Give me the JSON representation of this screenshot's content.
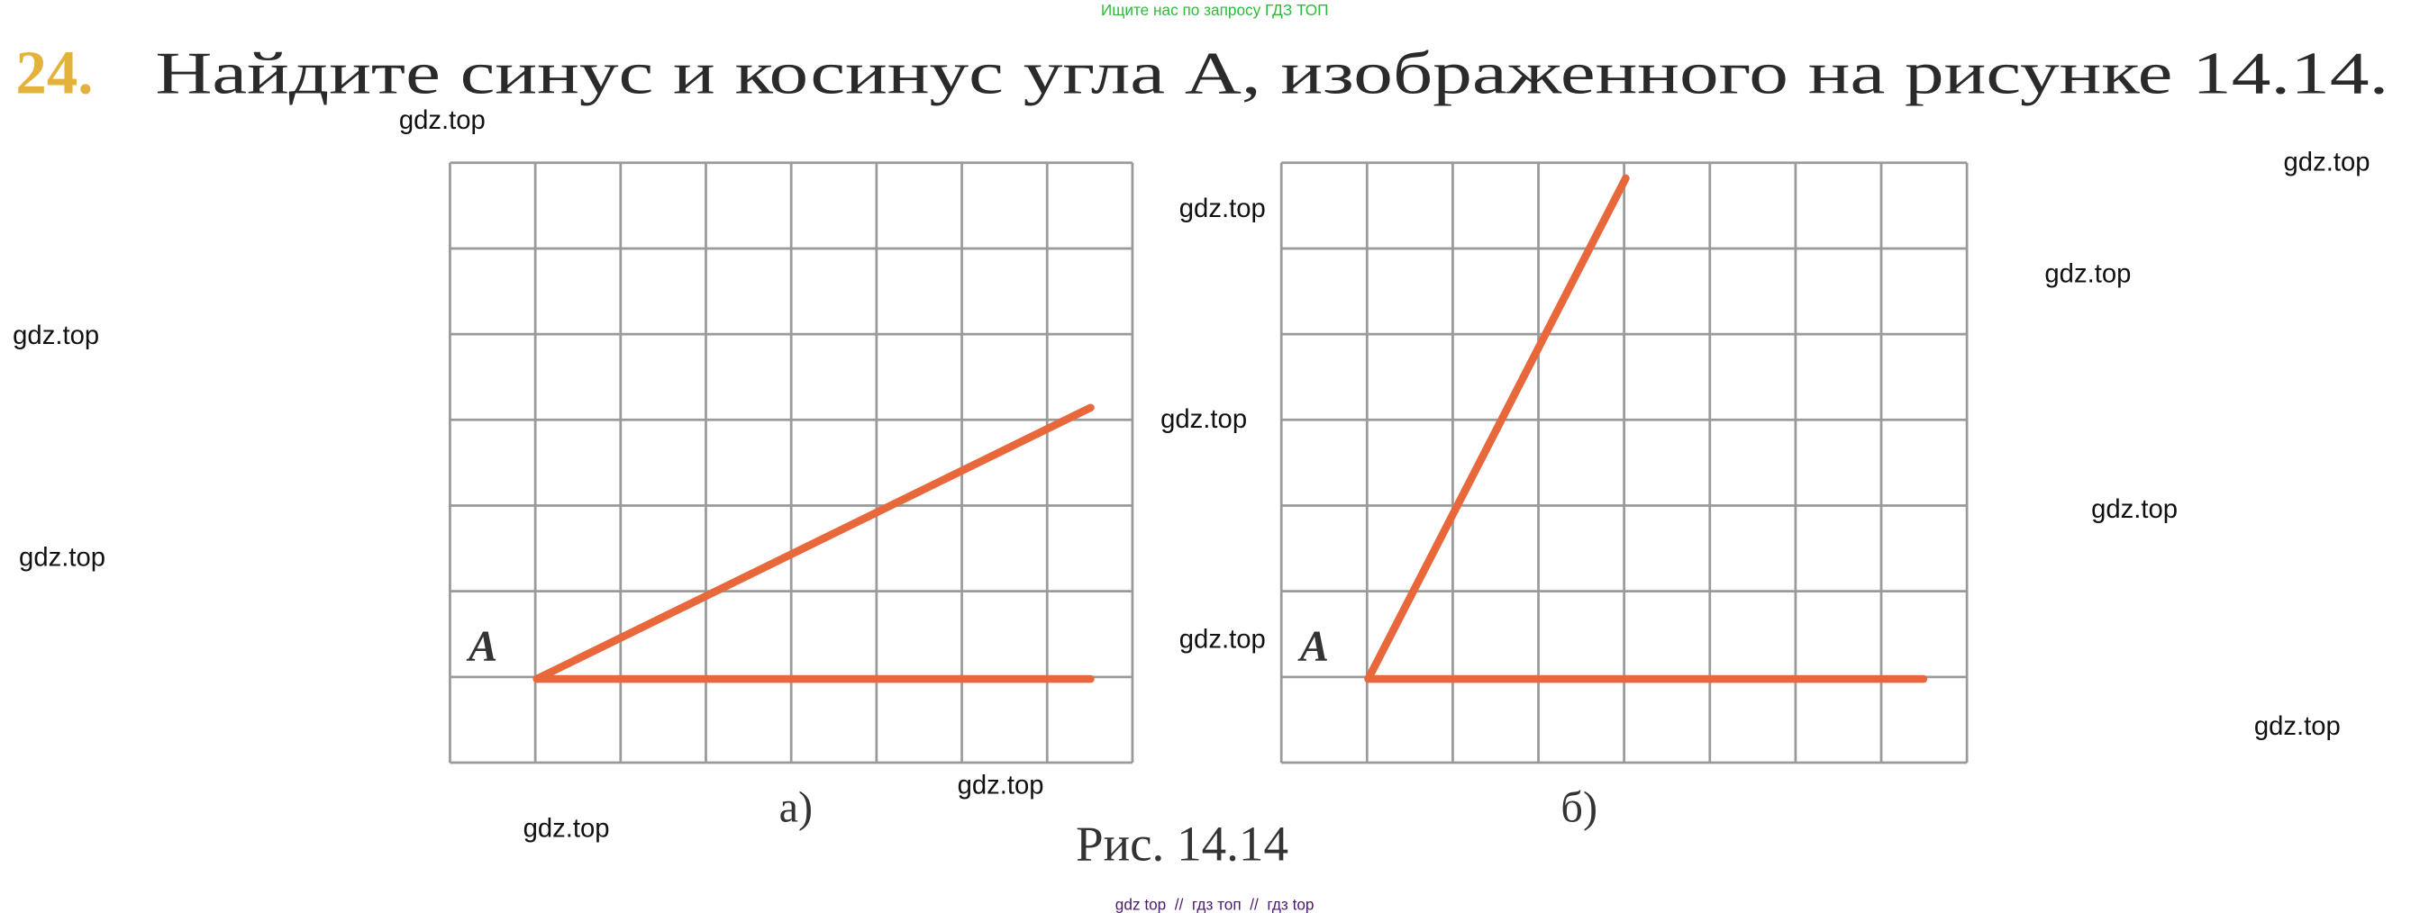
{
  "header": {
    "notice": "Ищите нас по запросу ГДЗ ТОП",
    "number": "24.",
    "task": "Найдите синус и косинус угла A, изображенного на рисунке 14.14."
  },
  "figure": {
    "panels": [
      {
        "vertex": "A",
        "label": "а)"
      },
      {
        "vertex": "A",
        "label": "б)"
      }
    ],
    "caption": "Рис. 14.14"
  },
  "watermarks": [
    "gdz.top",
    "gdz.top",
    "gdz.top",
    "gdz.top",
    "gdz.top",
    "gdz.top",
    "gdz.top",
    "gdz.top",
    "gdz.top",
    "gdz.top",
    "gdz.top",
    "gdz.top"
  ],
  "footer": "gdz top  //  гдз топ  //  гдз top"
}
